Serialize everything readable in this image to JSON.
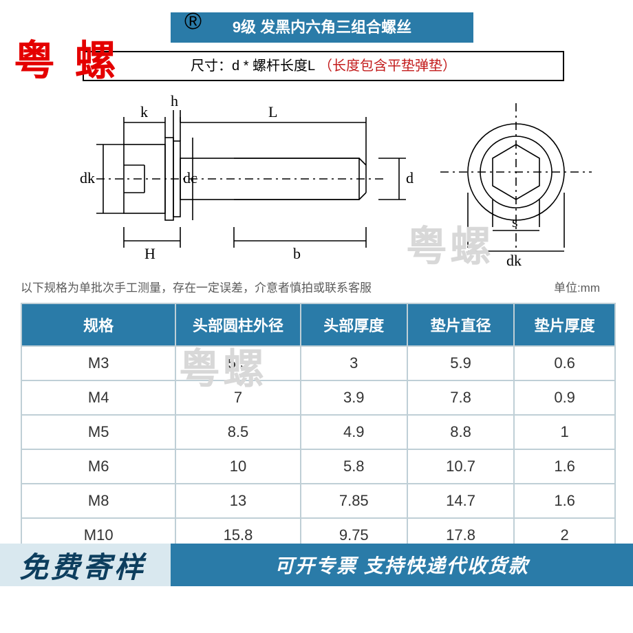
{
  "title_bar": "9级 发黑内六角三组合螺丝",
  "subhead_black": "尺寸：d * 螺杆长度L",
  "subhead_red": "（长度包含平垫弹垫）",
  "watermark_red": "粤 螺",
  "reg_mark": "®",
  "watermark_grey": "粤螺",
  "note_line": "以下规格为单批次手工测量，存在一定误差，介意者慎拍或联系客服",
  "unit_label": "单位:mm",
  "diagram_labels": {
    "k": "k",
    "h": "h",
    "L": "L",
    "dk": "dk",
    "dc": "dc",
    "d": "d",
    "H": "H",
    "b": "b",
    "s": "s",
    "dk2": "dk"
  },
  "table": {
    "columns": [
      "规格",
      "头部圆柱外径",
      "头部厚度",
      "垫片直径",
      "垫片厚度"
    ],
    "rows": [
      [
        "M3",
        "5.5",
        "3",
        "5.9",
        "0.6"
      ],
      [
        "M4",
        "7",
        "3.9",
        "7.8",
        "0.9"
      ],
      [
        "M5",
        "8.5",
        "4.9",
        "8.8",
        "1"
      ],
      [
        "M6",
        "10",
        "5.8",
        "10.7",
        "1.6"
      ],
      [
        "M8",
        "13",
        "7.85",
        "14.7",
        "1.6"
      ],
      [
        "M10",
        "15.8",
        "9.75",
        "17.8",
        "2"
      ]
    ],
    "col_widths": [
      "26%",
      "21%",
      "18%",
      "18%",
      "17%"
    ]
  },
  "footer": {
    "left": "免费寄样",
    "right": "可开专票 支持快递代收货款"
  },
  "colors": {
    "brand_blue": "#2a7ba8",
    "light_blue": "#d9e8ef",
    "border_grey": "#bfcfd6",
    "watermark_grey": "#d8d8d8",
    "red": "#e40000",
    "text_red": "#c31c1c"
  }
}
